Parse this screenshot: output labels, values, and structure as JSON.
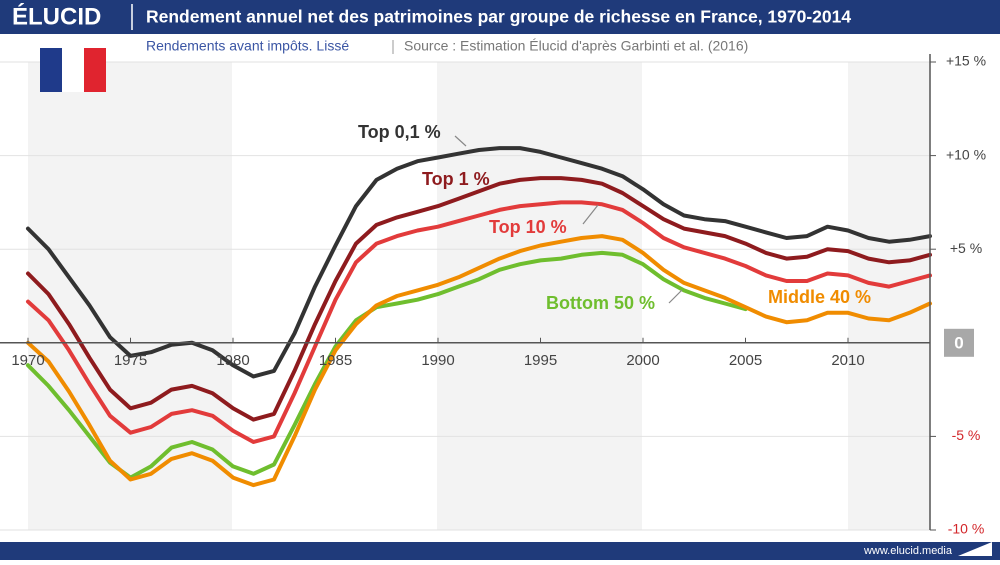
{
  "header": {
    "logo": "ÉLUCID",
    "subtitle": "Rendements avant impôts. Lissé",
    "source": "Source : Estimation Élucid d'après Garbinti et al. (2016)",
    "footer": "www.elucid.media"
  },
  "chart_data": {
    "type": "line",
    "title": "Rendement annuel net des patrimoines par groupe de richesse en France, 1970-2014",
    "x": [
      1970,
      1971,
      1972,
      1973,
      1974,
      1975,
      1976,
      1977,
      1978,
      1979,
      1980,
      1981,
      1982,
      1983,
      1984,
      1985,
      1986,
      1987,
      1988,
      1989,
      1990,
      1991,
      1992,
      1993,
      1994,
      1995,
      1996,
      1997,
      1998,
      1999,
      2000,
      2001,
      2002,
      2003,
      2004,
      2005,
      2006,
      2007,
      2008,
      2009,
      2010,
      2011,
      2012,
      2013,
      2014
    ],
    "xlim": [
      1970,
      2014
    ],
    "xticks": [
      1970,
      1975,
      1980,
      1985,
      1990,
      1995,
      2000,
      2005,
      2010
    ],
    "ylim": [
      -10,
      15
    ],
    "yticks": [
      {
        "value": -10,
        "label": "-10 %"
      },
      {
        "value": -5,
        "label": "-5 %"
      },
      0,
      {
        "value": 5,
        "label": "+5 %"
      },
      {
        "value": 10,
        "label": "+10 %"
      },
      {
        "value": 15,
        "label": "+15 %"
      }
    ],
    "grid": true,
    "series": [
      {
        "name": "Bottom 50 %",
        "color": "#6fbe2e",
        "values": [
          -1.2,
          -2.3,
          -3.6,
          -5.0,
          -6.4,
          -7.2,
          -6.6,
          -5.6,
          -5.3,
          -5.7,
          -6.6,
          -7.0,
          -6.5,
          -4.4,
          -2.2,
          -0.2,
          1.2,
          1.9,
          2.1,
          2.3,
          2.6,
          3.0,
          3.4,
          3.9,
          4.2,
          4.4,
          4.5,
          4.7,
          4.8,
          4.7,
          4.2,
          3.4,
          2.8,
          2.4,
          2.1,
          1.8,
          null,
          null,
          null,
          null,
          null,
          null,
          null,
          null,
          null
        ]
      },
      {
        "name": "Middle 40 %",
        "color": "#f08c00",
        "values": [
          0.0,
          -1.0,
          -2.6,
          -4.4,
          -6.3,
          -7.3,
          -7.0,
          -6.2,
          -5.9,
          -6.3,
          -7.2,
          -7.6,
          -7.3,
          -5.0,
          -2.5,
          -0.4,
          1.0,
          2.0,
          2.5,
          2.8,
          3.1,
          3.5,
          4.0,
          4.5,
          4.9,
          5.2,
          5.4,
          5.6,
          5.7,
          5.5,
          4.8,
          3.9,
          3.2,
          2.8,
          2.4,
          1.9,
          1.4,
          1.1,
          1.2,
          1.6,
          1.6,
          1.3,
          1.2,
          1.6,
          2.1
        ]
      },
      {
        "name": "Top 10 %",
        "color": "#e23b3b",
        "values": [
          2.2,
          1.2,
          -0.4,
          -2.2,
          -3.9,
          -4.8,
          -4.5,
          -3.8,
          -3.6,
          -3.9,
          -4.7,
          -5.3,
          -5.0,
          -2.7,
          -0.2,
          2.3,
          4.3,
          5.3,
          5.7,
          6.0,
          6.2,
          6.5,
          6.8,
          7.1,
          7.3,
          7.4,
          7.5,
          7.5,
          7.4,
          7.1,
          6.4,
          5.6,
          5.1,
          4.8,
          4.5,
          4.1,
          3.6,
          3.3,
          3.3,
          3.7,
          3.6,
          3.2,
          3.0,
          3.3,
          3.6
        ]
      },
      {
        "name": "Top 1 %",
        "color": "#8e1b1e",
        "values": [
          3.7,
          2.6,
          1.0,
          -0.8,
          -2.5,
          -3.5,
          -3.2,
          -2.5,
          -2.3,
          -2.7,
          -3.5,
          -4.1,
          -3.8,
          -1.5,
          1.0,
          3.3,
          5.3,
          6.3,
          6.7,
          7.0,
          7.3,
          7.7,
          8.1,
          8.5,
          8.7,
          8.8,
          8.8,
          8.7,
          8.5,
          8.0,
          7.3,
          6.6,
          6.1,
          5.9,
          5.7,
          5.3,
          4.8,
          4.5,
          4.6,
          5.0,
          4.9,
          4.5,
          4.3,
          4.4,
          4.7
        ]
      },
      {
        "name": "Top 0,1 %",
        "color": "#333333",
        "values": [
          6.1,
          5.0,
          3.5,
          2.0,
          0.3,
          -0.7,
          -0.5,
          -0.1,
          0.0,
          -0.4,
          -1.2,
          -1.8,
          -1.5,
          0.5,
          3.0,
          5.2,
          7.3,
          8.7,
          9.3,
          9.7,
          9.9,
          10.1,
          10.3,
          10.4,
          10.4,
          10.2,
          9.9,
          9.6,
          9.3,
          8.9,
          8.2,
          7.4,
          6.8,
          6.6,
          6.5,
          6.2,
          5.9,
          5.6,
          5.7,
          6.2,
          6.0,
          5.6,
          5.4,
          5.5,
          5.7
        ]
      }
    ]
  }
}
